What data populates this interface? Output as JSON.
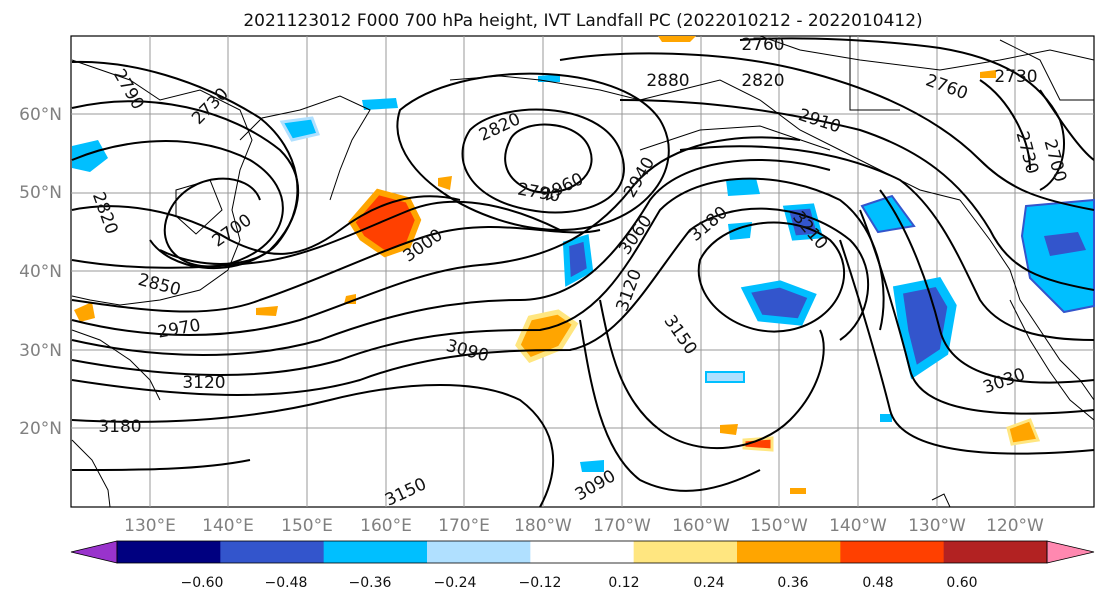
{
  "title": "2021123012 F000 700 hPa height, IVT Landfall PC (2022010212 - 2022010412)",
  "lat_labels": [
    "60°N",
    "50°N",
    "40°N",
    "30°N",
    "20°N"
  ],
  "lon_labels": [
    "130°E",
    "140°E",
    "150°E",
    "160°E",
    "170°E",
    "180°W",
    "170°W",
    "160°W",
    "150°W",
    "140°W",
    "130°W",
    "120°W"
  ],
  "colorbar": {
    "ticks": [
      "−0.60",
      "−0.48",
      "−0.36",
      "−0.24",
      "−0.12",
      "0.12",
      "0.24",
      "0.36",
      "0.48",
      "0.60"
    ],
    "colors": [
      "#9933cc",
      "#000080",
      "#3355cc",
      "#00bfff",
      "#b0e0ff",
      "#ffffff",
      "#ffe680",
      "#ffa500",
      "#ff4000",
      "#b22222",
      "#ff88b0"
    ]
  },
  "contour_labels": [
    "2760",
    "2880",
    "2820",
    "2910",
    "2760",
    "2730",
    "2790",
    "2730",
    "2820",
    "2790",
    "2960",
    "2940",
    "2700",
    "2820",
    "3000",
    "3060",
    "3180",
    "3210",
    "2850",
    "2970",
    "3120",
    "3150",
    "3090",
    "3120",
    "3180",
    "3150",
    "3090",
    "3030",
    "2730",
    "2700"
  ]
}
